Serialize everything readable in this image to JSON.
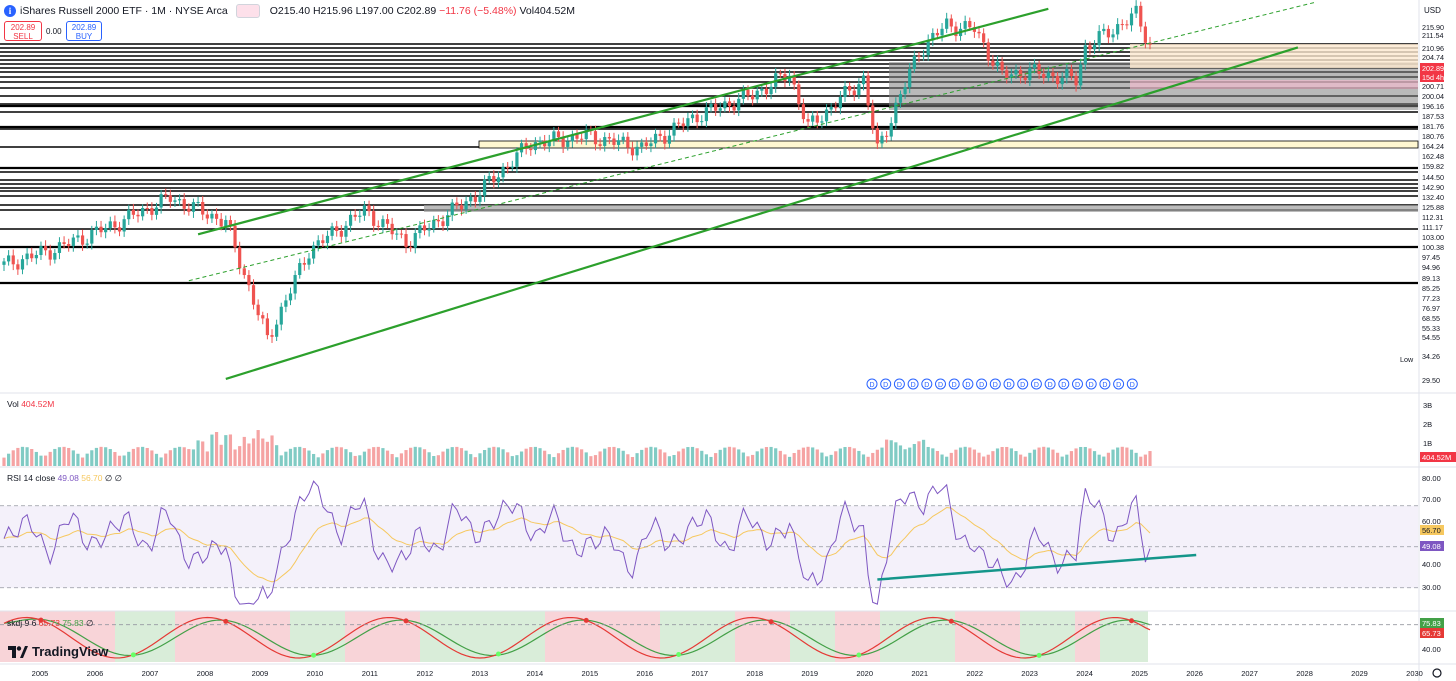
{
  "header": {
    "logo_letter": "i",
    "symbol": "iShares Russell 2000 ETF · 1M · NYSE Arca",
    "open": "O215.40",
    "high": "H215.96",
    "low": "L197.00",
    "close": "C202.89",
    "change": "−11.76 (−5.48%)",
    "volume": "Vol404.52M"
  },
  "trade": {
    "sell_price": "202.89",
    "sell_label": "SELL",
    "spread": "0.00",
    "buy_price": "202.89",
    "buy_label": "BUY"
  },
  "currency": "USD",
  "brand": "TradingView",
  "price_axis_labels": [
    "215.90",
    "211.54",
    "210.96",
    "204.74",
    "202.89",
    "15d 4h",
    "200.71",
    "200.04",
    "196.16",
    "187.53",
    "181.76",
    "180.76",
    "164.24",
    "162.48",
    "159.82",
    "144.50",
    "142.90",
    "132.40",
    "125.88",
    "112.31",
    "111.17",
    "103.00",
    "100.38",
    "97.45",
    "94.96",
    "89.13",
    "85.25",
    "77.23",
    "76.97",
    "68.55",
    "55.33",
    "54.55",
    "34.26",
    "29.50"
  ],
  "low_label": "Low",
  "panes": {
    "volume": {
      "label": "Vol",
      "value": "404.52M",
      "ticks": [
        "3B",
        "2B",
        "1B"
      ],
      "last": "404.52M"
    },
    "rsi": {
      "label": "RSI 14 close",
      "value": "49.08",
      "ma": "56.70",
      "extra": "∅ ∅",
      "ticks": [
        "80.00",
        "70.00",
        "60.00",
        "40.00",
        "30.00"
      ],
      "last": "49.08",
      "ma_last": "56.70"
    },
    "skdj": {
      "label": "skdj 9 6",
      "k": "65.73",
      "d": "75.83",
      "extra": "∅",
      "ticks": [
        "40.00"
      ],
      "k_last": "65.73",
      "d_last": "75.83"
    }
  },
  "x_axis": [
    "2005",
    "2006",
    "2007",
    "2008",
    "2009",
    "2010",
    "2011",
    "2012",
    "2013",
    "2014",
    "2015",
    "2016",
    "2017",
    "2018",
    "2019",
    "2020",
    "2021",
    "2022",
    "2023",
    "2024",
    "2025",
    "2026",
    "2027",
    "2028",
    "2029",
    "2030"
  ],
  "colors": {
    "up": "#26a69a",
    "down": "#ef5350",
    "channel": "#2ca02c",
    "rsi_line": "#7e57c2",
    "rsi_ma": "#f6c85f",
    "rsi_trend": "#14968a",
    "skdj_k": "#e53935",
    "skdj_d": "#43a047"
  },
  "chart_data": {
    "type": "candlestick",
    "title": "iShares Russell 2000 ETF · 1M · NYSE Arca",
    "interval": "1M",
    "ylim": [
      29.5,
      215.9
    ],
    "x_range": [
      "2004-06",
      "2030-01"
    ],
    "last": {
      "open": 215.4,
      "high": 215.96,
      "low": 197.0,
      "close": 202.89,
      "change": -11.76,
      "change_pct": -5.48,
      "volume": "404.52M"
    },
    "close_path": [
      [
        "2004-06",
        57
      ],
      [
        "2005-06",
        63
      ],
      [
        "2006-06",
        72
      ],
      [
        "2007-06",
        84
      ],
      [
        "2008-06",
        73
      ],
      [
        "2009-03",
        37
      ],
      [
        "2009-12",
        62
      ],
      [
        "2010-12",
        78
      ],
      [
        "2011-09",
        65
      ],
      [
        "2012-12",
        85
      ],
      [
        "2013-12",
        115
      ],
      [
        "2014-12",
        120
      ],
      [
        "2015-12",
        112
      ],
      [
        "2016-12",
        135
      ],
      [
        "2017-12",
        152
      ],
      [
        "2018-08",
        172
      ],
      [
        "2018-12",
        126
      ],
      [
        "2019-12",
        167
      ],
      [
        "2020-03",
        110
      ],
      [
        "2020-12",
        196
      ],
      [
        "2021-06",
        228
      ],
      [
        "2021-12",
        222
      ],
      [
        "2022-06",
        170
      ],
      [
        "2022-12",
        174
      ],
      [
        "2023-10",
        166
      ],
      [
        "2023-12",
        200
      ],
      [
        "2024-11",
        242
      ],
      [
        "2025-02",
        203
      ]
    ],
    "channel": {
      "upper": [
        [
          "2007-12",
          68
        ],
        [
          "2023-04",
          250
        ]
      ],
      "lower": [
        [
          "2008-06",
          29.5
        ],
        [
          "2027-10",
          200
        ]
      ],
      "mid": [
        [
          "2007-10",
          52
        ],
        [
          "2028-02",
          260
        ]
      ]
    },
    "rsi_trendline": [
      [
        "2020-03",
        34
      ],
      [
        "2025-12",
        46
      ]
    ],
    "rsi": {
      "period": 14,
      "last": 49.08,
      "ma_last": 56.7,
      "levels": [
        70,
        30
      ]
    },
    "skdj": {
      "n": 9,
      "m": 6,
      "k_last": 65.73,
      "d_last": 75.83
    }
  }
}
